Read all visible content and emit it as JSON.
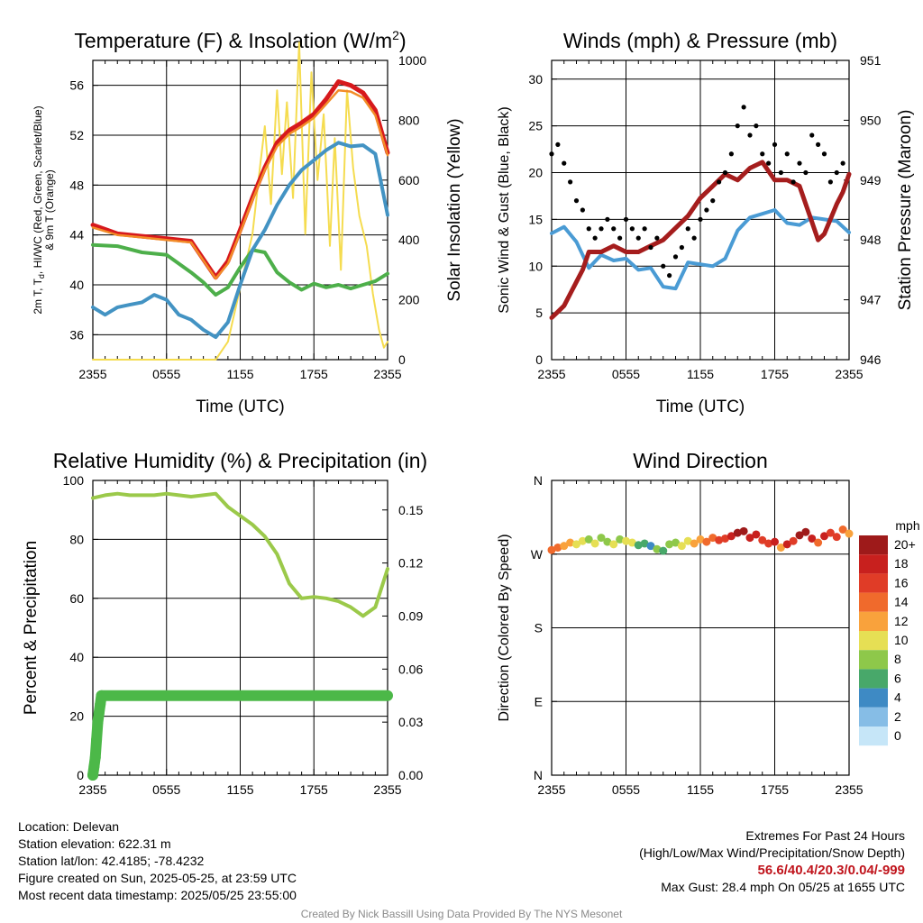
{
  "location_label": "Location: Delevan",
  "elevation_label": "Station elevation: 622.31 m",
  "latlon_label": "Station lat/lon: 42.4185; -78.4232",
  "created_label": "Figure created on Sun, 2025-05-25, at 23:59 UTC",
  "recent_label": "Most recent data timestamp: 2025/05/25 23:55:00",
  "extremes_title": "Extremes For Past 24 Hours",
  "extremes_subtitle": "(High/Low/Max Wind/Precipitation/Snow Depth)",
  "extremes_values": "56.6/40.4/20.3/0.04/-999",
  "max_gust_label": "Max Gust: 28.4 mph On 05/25 at 1655 UTC",
  "credit": "Created By Nick Bassill Using Data Provided By The NYS Mesonet",
  "colors": {
    "temp_red": "#d7191c",
    "dewpoint_green": "#4daf4a",
    "windchill_blue": "#4393c3",
    "temp9m_orange": "#f28c28",
    "solar_yellow": "#f5dc50",
    "wind_blue": "#4a9bd4",
    "gust_black": "#000000",
    "pressure_maroon": "#a51d1d",
    "rh_green": "#9bc94a",
    "precip_green": "#4cb848"
  },
  "chart_data": [
    {
      "type": "line",
      "title": "Temperature (F) & Insolation (W/m",
      "title_sup": "2",
      "title_end": ")",
      "xlabel": "Time (UTC)",
      "ylabel_lines": [
        "2m T, T",
        "d",
        ", HI/WC (Red, Green, Scarlet/Blue)",
        "& 9m T (Orange)"
      ],
      "y2label": "Solar Insolation (Yellow)",
      "x_ticks": [
        "2355",
        "0555",
        "1155",
        "1755",
        "2355"
      ],
      "ylim": [
        34,
        58
      ],
      "y_ticks": [
        36,
        40,
        44,
        48,
        52,
        56
      ],
      "y2lim": [
        0,
        1000
      ],
      "y2_ticks": [
        0,
        200,
        400,
        600,
        800,
        1000
      ],
      "series": [
        {
          "key": "t2m",
          "color_key": "temp_red",
          "axis": "y",
          "x": [
            0,
            2,
            4,
            6,
            8,
            10,
            11,
            12,
            13,
            14,
            15,
            16,
            17,
            18,
            19,
            20,
            21,
            22,
            23,
            24
          ],
          "values": [
            44.8,
            44.1,
            43.9,
            43.7,
            43.5,
            40.6,
            41.9,
            44.4,
            47.0,
            49.4,
            51.4,
            52.4,
            53.0,
            53.7,
            54.9,
            56.3,
            56.0,
            55.4,
            54.0,
            50.6
          ]
        },
        {
          "key": "t9m",
          "color_key": "temp9m_orange",
          "axis": "y",
          "x": [
            0,
            2,
            4,
            6,
            8,
            10,
            11,
            12,
            13,
            14,
            15,
            16,
            17,
            18,
            19,
            20,
            21,
            22,
            23,
            24
          ],
          "values": [
            44.6,
            44.0,
            43.8,
            43.6,
            43.4,
            40.5,
            41.7,
            44.2,
            46.8,
            49.2,
            51.1,
            52.1,
            52.7,
            53.4,
            54.5,
            55.6,
            55.5,
            55.0,
            53.6,
            50.4
          ]
        },
        {
          "key": "dewpoint",
          "color_key": "dewpoint_green",
          "axis": "y",
          "x": [
            0,
            2,
            4,
            6,
            8,
            9,
            10,
            11,
            12,
            13,
            14,
            15,
            16,
            17,
            18,
            19,
            20,
            21,
            22,
            23,
            24
          ],
          "values": [
            43.2,
            43.1,
            42.6,
            42.4,
            41.0,
            40.2,
            39.2,
            39.8,
            41.4,
            42.8,
            42.6,
            41.0,
            40.2,
            39.6,
            40.1,
            39.8,
            40.0,
            39.7,
            40.0,
            40.3,
            40.9
          ]
        },
        {
          "key": "windchill",
          "color_key": "windchill_blue",
          "axis": "y",
          "x": [
            0,
            1,
            2,
            3,
            4,
            5,
            6,
            7,
            8,
            9,
            10,
            11,
            12,
            13,
            14,
            15,
            16,
            17,
            18,
            19,
            20,
            21,
            22,
            23,
            24
          ],
          "values": [
            38.2,
            37.6,
            38.2,
            38.4,
            38.6,
            39.2,
            38.8,
            37.6,
            37.2,
            36.4,
            35.8,
            37.0,
            40.0,
            42.8,
            44.4,
            46.4,
            48.0,
            49.2,
            50.0,
            50.8,
            51.4,
            51.1,
            51.2,
            50.5,
            45.6
          ]
        },
        {
          "key": "solar",
          "color_key": "solar_yellow",
          "axis": "y2",
          "x": [
            0,
            9,
            10,
            11,
            12,
            13,
            13.6,
            14,
            14.5,
            15,
            15.4,
            15.8,
            16.3,
            16.8,
            17.3,
            17.8,
            18.3,
            18.8,
            19.3,
            19.7,
            20.2,
            20.7,
            21.2,
            21.7,
            22.3,
            22.8,
            23.3,
            23.7,
            24
          ],
          "values": [
            0,
            0,
            0,
            60,
            240,
            420,
            640,
            780,
            520,
            900,
            620,
            860,
            540,
            1060,
            420,
            960,
            600,
            820,
            380,
            740,
            300,
            900,
            640,
            480,
            380,
            220,
            100,
            40,
            60
          ]
        }
      ]
    },
    {
      "type": "line",
      "title": "Winds (mph) & Pressure (mb)",
      "xlabel": "Time (UTC)",
      "ylabel": "Sonic Wind & Gust (Blue, Black)",
      "y2label": "Station Pressure (Maroon)",
      "x_ticks": [
        "2355",
        "0555",
        "1155",
        "1755",
        "2355"
      ],
      "ylim": [
        0,
        32
      ],
      "y_ticks": [
        0,
        5,
        10,
        15,
        20,
        25,
        30
      ],
      "y2lim": [
        946,
        951
      ],
      "y2_ticks": [
        946,
        947,
        948,
        949,
        950,
        951
      ],
      "series": [
        {
          "key": "wind",
          "color_key": "wind_blue",
          "axis": "y",
          "x": [
            0,
            1,
            2,
            3,
            4,
            5,
            6,
            7,
            8,
            9,
            10,
            11,
            12,
            13,
            14,
            15,
            16,
            17,
            18,
            19,
            20,
            21,
            22,
            23,
            24
          ],
          "values": [
            13.5,
            14.2,
            12.6,
            9.8,
            11.2,
            10.6,
            10.8,
            9.6,
            9.8,
            7.8,
            7.6,
            10.4,
            10.2,
            10.0,
            10.8,
            13.8,
            15.2,
            15.6,
            16.0,
            14.6,
            14.4,
            15.2,
            15.0,
            14.8,
            13.6
          ]
        },
        {
          "key": "gust",
          "color_key": "gust_black",
          "axis": "y",
          "style": "dots",
          "x": [
            0,
            0.5,
            1,
            1.5,
            2,
            2.5,
            3,
            3.5,
            4,
            4.5,
            5,
            5.5,
            6,
            6.5,
            7,
            7.5,
            8,
            8.5,
            9,
            9.5,
            10,
            10.5,
            11,
            11.5,
            12,
            12.5,
            13,
            13.5,
            14,
            14.5,
            15,
            15.5,
            16,
            16.5,
            17,
            17.5,
            18,
            18.5,
            19,
            19.5,
            20,
            20.5,
            21,
            21.5,
            22,
            22.5,
            23,
            23.5
          ],
          "values": [
            22,
            23,
            21,
            19,
            17,
            16,
            14,
            13,
            14,
            15,
            14,
            13,
            15,
            14,
            13,
            14,
            12,
            13,
            10,
            9,
            11,
            12,
            14,
            13,
            15,
            16,
            17,
            19,
            20,
            22,
            25,
            27,
            24,
            25,
            22,
            21,
            23,
            20,
            22,
            19,
            21,
            20,
            24,
            23,
            22,
            19,
            20,
            21
          ]
        },
        {
          "key": "pressure",
          "color_key": "pressure_maroon",
          "axis": "y2",
          "x": [
            0,
            0.5,
            1,
            1.5,
            2,
            2.5,
            3,
            4,
            5,
            6,
            7,
            8,
            9,
            10,
            11,
            12,
            13,
            14,
            15,
            16,
            17,
            18,
            19,
            20,
            21,
            21.5,
            22,
            23,
            23.5,
            24
          ],
          "values": [
            946.7,
            946.8,
            946.9,
            947.1,
            947.3,
            947.5,
            947.8,
            947.8,
            947.9,
            947.8,
            947.8,
            947.9,
            948.0,
            948.2,
            948.4,
            948.7,
            948.9,
            949.1,
            949.0,
            949.2,
            949.3,
            949.0,
            949.0,
            948.9,
            948.3,
            948.0,
            948.1,
            948.6,
            948.8,
            949.1
          ]
        }
      ]
    },
    {
      "type": "line",
      "title": "Relative Humidity (%) & Precipitation (in)",
      "xlabel": "",
      "ylabel": "Percent & Precipitation",
      "x_ticks": [
        "2355",
        "0555",
        "1155",
        "1755",
        "2355"
      ],
      "ylim": [
        0,
        100
      ],
      "y_ticks": [
        0,
        20,
        40,
        60,
        80,
        100
      ],
      "y2lim": [
        0,
        0.1667
      ],
      "y2_ticks": [
        0.0,
        0.03,
        0.06,
        0.09,
        0.12,
        0.15
      ],
      "y2_tick_labels": [
        "0.00",
        "0.03",
        "0.06",
        "0.09",
        "0.12",
        "0.15"
      ],
      "series": [
        {
          "key": "rh",
          "color_key": "rh_green",
          "axis": "y",
          "x": [
            0,
            1,
            2,
            3,
            4,
            5,
            6,
            7,
            8,
            9,
            10,
            11,
            12,
            13,
            14,
            15,
            16,
            17,
            18,
            19,
            20,
            21,
            22,
            23,
            24
          ],
          "values": [
            94,
            95,
            95.5,
            95,
            95,
            95,
            95.5,
            95,
            94.5,
            95,
            95.5,
            91,
            88,
            85,
            81,
            75,
            65,
            60,
            60.5,
            60,
            59,
            57,
            54,
            57,
            70
          ]
        },
        {
          "key": "precip",
          "color_key": "precip_green",
          "axis": "y2",
          "style": "dots",
          "x": [
            0,
            0.1,
            0.2,
            0.3,
            0.4,
            0.5,
            0.6,
            0.7,
            0.8,
            1,
            2,
            4,
            8,
            12,
            16,
            20,
            24
          ],
          "values": [
            0,
            0.005,
            0.01,
            0.02,
            0.03,
            0.035,
            0.04,
            0.045,
            0.045,
            0.045,
            0.045,
            0.045,
            0.045,
            0.045,
            0.045,
            0.045,
            0.045
          ]
        }
      ]
    },
    {
      "type": "scatter",
      "title": "Wind Direction",
      "ylabel": "Direction (Colored By Speed)",
      "x_ticks": [
        "2355",
        "0555",
        "1155",
        "1755",
        "2355"
      ],
      "ylim": [
        0,
        360
      ],
      "y_ticks": [
        0,
        90,
        180,
        270,
        360
      ],
      "y_tick_labels": [
        "N",
        "E",
        "S",
        "W",
        "N"
      ],
      "legend_title": "mph",
      "legend_labels": [
        "20+",
        "18",
        "16",
        "14",
        "12",
        "10",
        "8",
        "6",
        "4",
        "2",
        "0"
      ],
      "legend_colors": [
        "#9e1a1a",
        "#c8201e",
        "#e03c27",
        "#f06a2c",
        "#f9a23c",
        "#e6df54",
        "#8ec84a",
        "#48a86a",
        "#3e8ac4",
        "#86bde6",
        "#c6e6f8"
      ],
      "x": [
        0,
        0.5,
        1,
        1.5,
        2,
        2.5,
        3,
        3.5,
        4,
        4.5,
        5,
        5.5,
        6,
        6.5,
        7,
        7.5,
        8,
        8.5,
        9,
        9.5,
        10,
        10.5,
        11,
        11.5,
        12,
        12.5,
        13,
        13.5,
        14,
        14.5,
        15,
        15.5,
        16,
        16.5,
        17,
        17.5,
        18,
        18.5,
        19,
        19.5,
        20,
        20.5,
        21,
        21.5,
        22,
        22.5,
        23,
        23.5,
        24
      ],
      "values": [
        275,
        278,
        280,
        284,
        282,
        286,
        288,
        283,
        290,
        285,
        282,
        288,
        286,
        284,
        281,
        283,
        280,
        276,
        274,
        282,
        284,
        280,
        286,
        283,
        288,
        285,
        290,
        287,
        289,
        292,
        296,
        298,
        290,
        294,
        287,
        283,
        285,
        278,
        282,
        286,
        293,
        297,
        289,
        284,
        292,
        296,
        291,
        300,
        295
      ],
      "speed": [
        14,
        13,
        12,
        11,
        10,
        9,
        8,
        9,
        7,
        8,
        10,
        8,
        9,
        10,
        6,
        5,
        4,
        8,
        6,
        7,
        8,
        9,
        10,
        11,
        12,
        13,
        14,
        15,
        16,
        18,
        19,
        20,
        17,
        18,
        16,
        15,
        18,
        12,
        17,
        16,
        20,
        19,
        18,
        14,
        17,
        16,
        15,
        13,
        12
      ]
    }
  ]
}
